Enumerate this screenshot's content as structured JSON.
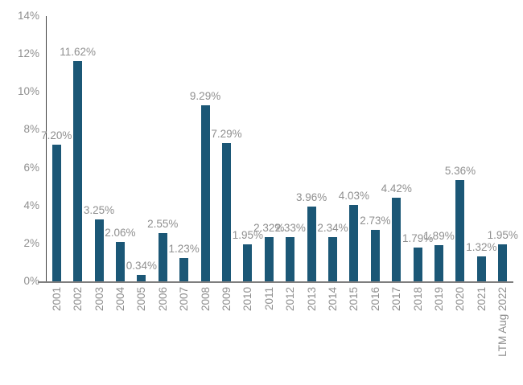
{
  "chart_data": {
    "type": "bar",
    "title": "",
    "xlabel": "",
    "ylabel": "",
    "categories": [
      "2001",
      "2002",
      "2003",
      "2004",
      "2005",
      "2006",
      "2007",
      "2008",
      "2009",
      "2010",
      "2011",
      "2012",
      "2013",
      "2014",
      "2015",
      "2016",
      "2017",
      "2018",
      "2019",
      "2020",
      "2021",
      "LTM Aug 2022"
    ],
    "values": [
      7.2,
      11.62,
      3.25,
      2.06,
      0.34,
      2.55,
      1.23,
      9.29,
      7.29,
      1.95,
      2.32,
      2.33,
      3.96,
      2.34,
      4.03,
      2.73,
      4.42,
      1.79,
      1.89,
      5.36,
      1.32,
      1.95
    ],
    "data_labels": [
      "7.20%",
      "11.62%",
      "3.25%",
      "2.06%",
      "0.34%",
      "2.55%",
      "1.23%",
      "9.29%",
      "7.29%",
      "1.95%",
      "2.32%",
      "2.33%",
      "3.96%",
      "2.34%",
      "4.03%",
      "2.73%",
      "4.42%",
      "1.79%",
      "1.89%",
      "5.36%",
      "1.32%",
      "1.95%"
    ],
    "y_ticks": [
      "0%",
      "2%",
      "4%",
      "6%",
      "8%",
      "10%",
      "12%",
      "14%"
    ],
    "y_tick_values": [
      0,
      2,
      4,
      6,
      8,
      10,
      12,
      14
    ],
    "ylim": [
      0,
      14
    ],
    "grid": false,
    "legend": false,
    "x_labels_rotated": true,
    "bar_color": "#1b5776",
    "label_color": "#8f8f8f",
    "axis_line_color": "#404040",
    "baseline_color": "#7f7f7f",
    "background": "#ffffff"
  }
}
